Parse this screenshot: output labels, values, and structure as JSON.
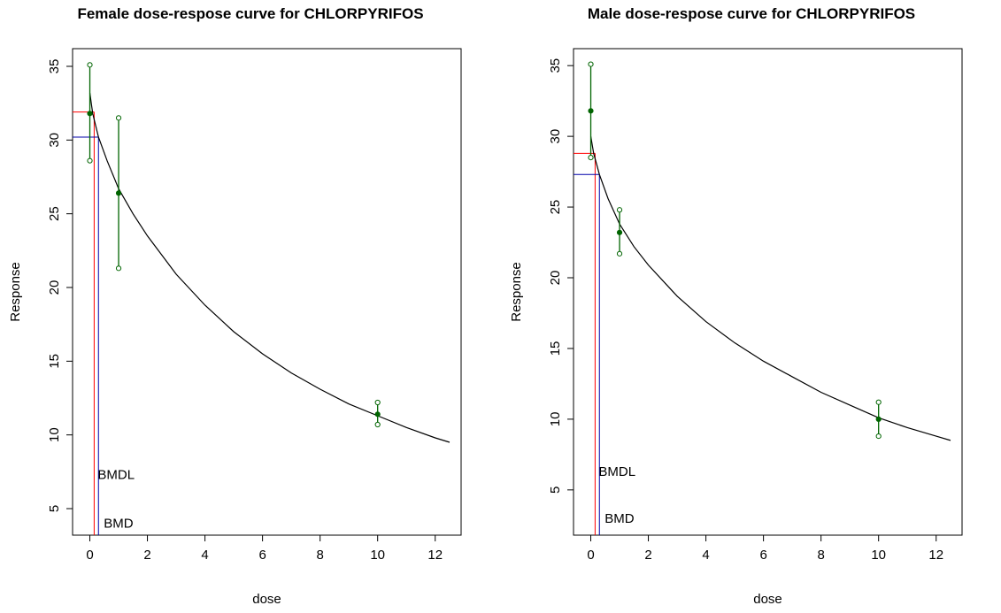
{
  "chart_data": [
    {
      "type": "line",
      "title": "Female dose-respose curve for CHLORPYRIFOS",
      "xlabel": "dose",
      "ylabel": "Response",
      "xlim": [
        -0.6,
        12.9
      ],
      "ylim": [
        3.2,
        36.2
      ],
      "xticks": [
        0,
        2,
        4,
        6,
        8,
        10,
        12
      ],
      "yticks": [
        5,
        10,
        15,
        20,
        25,
        30,
        35
      ],
      "grid": false,
      "curve": {
        "color": "#000000",
        "points": [
          [
            0,
            33.2
          ],
          [
            0.1,
            31.8
          ],
          [
            0.3,
            30.2
          ],
          [
            0.6,
            28.6
          ],
          [
            1,
            26.7
          ],
          [
            1.5,
            25.0
          ],
          [
            2,
            23.5
          ],
          [
            3,
            20.9
          ],
          [
            4,
            18.8
          ],
          [
            5,
            17.0
          ],
          [
            6,
            15.5
          ],
          [
            7,
            14.2
          ],
          [
            8,
            13.1
          ],
          [
            9,
            12.1
          ],
          [
            10,
            11.3
          ],
          [
            11,
            10.5
          ],
          [
            12,
            9.8
          ],
          [
            12.5,
            9.5
          ]
        ]
      },
      "observations": {
        "color": "#006400",
        "points": [
          {
            "dose": 0,
            "mean": 31.8,
            "lower": 28.6,
            "upper": 35.1
          },
          {
            "dose": 1,
            "mean": 26.4,
            "lower": 21.3,
            "upper": 31.5
          },
          {
            "dose": 10,
            "mean": 11.4,
            "lower": 10.7,
            "upper": 12.2
          }
        ]
      },
      "bmdl": {
        "label": "BMDL",
        "dose": 0.15,
        "response": 31.9,
        "color": "#ff0000",
        "label_y": 7.3
      },
      "bmd": {
        "label": "BMD",
        "dose": 0.3,
        "response": 30.2,
        "color": "#0000aa",
        "label_y": 4.0
      }
    },
    {
      "type": "line",
      "title": "Male dose-respose curve for CHLORPYRIFOS",
      "xlabel": "dose",
      "ylabel": "Response",
      "xlim": [
        -0.6,
        12.9
      ],
      "ylim": [
        1.8,
        36.2
      ],
      "xticks": [
        0,
        2,
        4,
        6,
        8,
        10,
        12
      ],
      "yticks": [
        5,
        10,
        15,
        20,
        25,
        30,
        35
      ],
      "grid": false,
      "curve": {
        "color": "#000000",
        "points": [
          [
            0,
            30.0
          ],
          [
            0.1,
            28.8
          ],
          [
            0.3,
            27.3
          ],
          [
            0.6,
            25.6
          ],
          [
            1,
            23.8
          ],
          [
            1.5,
            22.2
          ],
          [
            2,
            20.9
          ],
          [
            3,
            18.7
          ],
          [
            4,
            16.9
          ],
          [
            5,
            15.4
          ],
          [
            6,
            14.1
          ],
          [
            7,
            13.0
          ],
          [
            8,
            11.9
          ],
          [
            9,
            11.0
          ],
          [
            10,
            10.1
          ],
          [
            11,
            9.4
          ],
          [
            12,
            8.8
          ],
          [
            12.5,
            8.5
          ]
        ]
      },
      "observations": {
        "color": "#006400",
        "points": [
          {
            "dose": 0,
            "mean": 31.8,
            "lower": 28.5,
            "upper": 35.1
          },
          {
            "dose": 1,
            "mean": 23.2,
            "lower": 21.7,
            "upper": 24.8
          },
          {
            "dose": 10,
            "mean": 10.0,
            "lower": 8.8,
            "upper": 11.2
          }
        ]
      },
      "bmdl": {
        "label": "BMDL",
        "dose": 0.15,
        "response": 28.8,
        "color": "#ff0000",
        "label_y": 6.3
      },
      "bmd": {
        "label": "BMD",
        "dose": 0.3,
        "response": 27.3,
        "color": "#0000aa",
        "label_y": 3.0
      }
    }
  ]
}
